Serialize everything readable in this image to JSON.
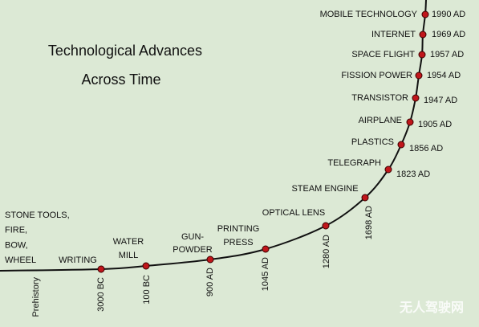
{
  "title": [
    "Technological Advances",
    "Across Time"
  ],
  "events": [
    {
      "label": [
        "STONE TOOLS,",
        "FIRE,",
        "BOW,",
        "WHEEL"
      ],
      "date": "Prehistory"
    },
    {
      "label": [
        "WRITING"
      ],
      "date": "3000 BC"
    },
    {
      "label": [
        "WATER",
        "MILL"
      ],
      "date": "100 BC"
    },
    {
      "label": [
        "GUN-",
        "POWDER"
      ],
      "date": "900 AD"
    },
    {
      "label": [
        "PRINTING",
        "PRESS"
      ],
      "date": "1045 AD"
    },
    {
      "label": [
        "OPTICAL LENS"
      ],
      "date": "1280 AD"
    },
    {
      "label": [
        "STEAM ENGINE"
      ],
      "date": "1698 AD"
    },
    {
      "label": [
        "TELEGRAPH"
      ],
      "date": "1823 AD"
    },
    {
      "label": [
        "PLASTICS"
      ],
      "date": "1856 AD"
    },
    {
      "label": [
        "AIRPLANE"
      ],
      "date": "1905 AD"
    },
    {
      "label": [
        "TRANSISTOR"
      ],
      "date": "1947 AD"
    },
    {
      "label": [
        "FISSION POWER"
      ],
      "date": "1954 AD"
    },
    {
      "label": [
        "SPACE FLIGHT"
      ],
      "date": "1957 AD"
    },
    {
      "label": [
        "INTERNET"
      ],
      "date": "1969 AD"
    },
    {
      "label": [
        "MOBILE TECHNOLOGY"
      ],
      "date": "1990 AD"
    }
  ],
  "watermark": "无人驾驶网"
}
